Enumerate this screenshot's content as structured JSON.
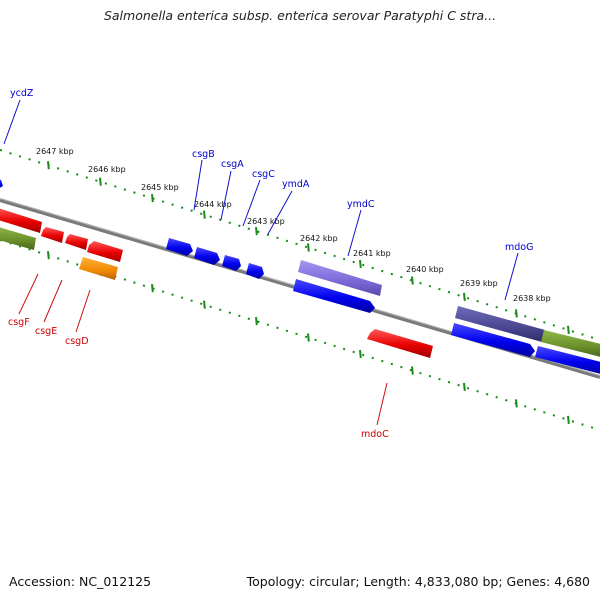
{
  "title": "Salmonella enterica subsp. enterica serovar Paratyphi C stra...",
  "footer": {
    "accession": "Accession: NC_012125",
    "summary": "Topology: circular; Length: 4,833,080 bp; Genes: 4,680"
  },
  "colors": {
    "forward_gene": "#0000ee",
    "reverse_gene": "#ee0000",
    "forward_label": "#0000cc",
    "reverse_label": "#cc0000",
    "tick": "#1a8a1a",
    "backbone": "#808080",
    "purple_feature": "#7b68d8",
    "dark_purple_feature": "#4a4690",
    "olive_feature": "#6a8f2a",
    "orange_feature": "#f08a00"
  },
  "map": {
    "kbp_labels": [
      "2647 kbp",
      "2646 kbp",
      "2645 kbp",
      "2644 kbp",
      "2643 kbp",
      "2642 kbp",
      "2641 kbp",
      "2640 kbp",
      "2639 kbp",
      "2638 kbp"
    ],
    "forward_gene_labels": [
      "ycdZ",
      "csgB",
      "csgA",
      "csgC",
      "ymdA",
      "ymdC",
      "mdoG"
    ],
    "reverse_gene_labels": [
      "csgF",
      "csgE",
      "csgD",
      "mdoC"
    ]
  }
}
